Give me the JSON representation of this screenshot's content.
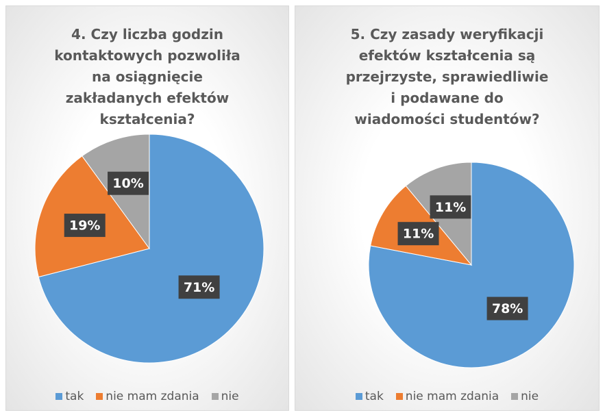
{
  "chart_data": [
    {
      "type": "pie",
      "title": "4. Czy liczba godzin kontaktowych pozwoliła na osiągnięcie zakładanych efektów kształcenia?",
      "categories": [
        "tak",
        "nie mam zdania",
        "nie"
      ],
      "values": [
        71,
        19,
        10
      ],
      "value_labels": [
        "71%",
        "19%",
        "10%"
      ],
      "colors": [
        "#5b9bd5",
        "#ed7d31",
        "#a5a5a5"
      ],
      "legend": "bottom"
    },
    {
      "type": "pie",
      "title": "5. Czy zasady weryfikacji efektów kształcenia są przejrzyste, sprawiedliwie i podawane do wiadomości studentów?",
      "categories": [
        "tak",
        "nie mam zdania",
        "nie"
      ],
      "values": [
        78,
        11,
        11
      ],
      "value_labels": [
        "78%",
        "11%",
        "11%"
      ],
      "colors": [
        "#5b9bd5",
        "#ed7d31",
        "#a5a5a5"
      ],
      "legend": "bottom"
    }
  ]
}
